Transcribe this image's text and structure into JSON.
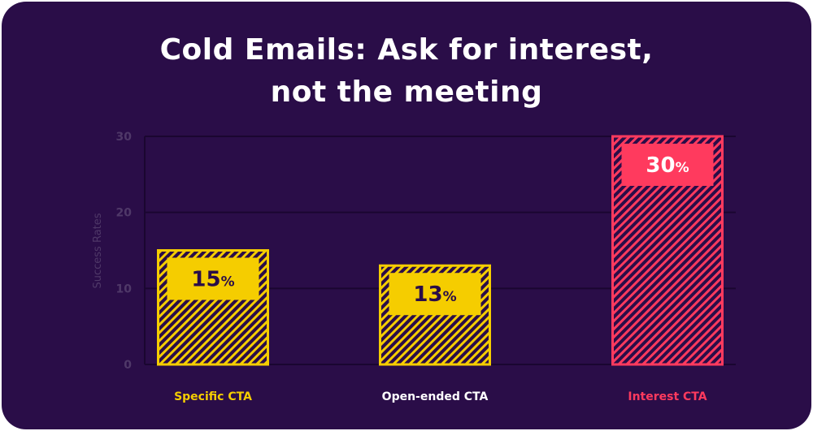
{
  "title_line1": "Cold Emails: Ask for interest,",
  "title_line2": "not the meeting",
  "chart_data": {
    "type": "bar",
    "title": "Cold Emails: Ask for interest, not the meeting",
    "xlabel": "",
    "ylabel": "Success Rates",
    "ylim": [
      0,
      30
    ],
    "yticks": [
      0,
      10,
      20,
      30
    ],
    "grid": true,
    "categories": [
      "Specific CTA",
      "Open-ended CTA",
      "Interest CTA"
    ],
    "values": [
      15,
      13,
      30
    ],
    "value_labels": [
      "15",
      "13",
      "30"
    ],
    "value_unit": "%",
    "colors": [
      "#f5cd00",
      "#f5cd00",
      "#ff3a5e"
    ],
    "label_colors": [
      "#f5cd00",
      "#ffffff",
      "#ff3a5e"
    ],
    "badge_text_colors": [
      "#2a0d48",
      "#2a0d48",
      "#ffffff"
    ]
  },
  "colors": {
    "background": "#2a0d48",
    "axis_text": "#4f3868",
    "gridline": "#1a0630"
  }
}
